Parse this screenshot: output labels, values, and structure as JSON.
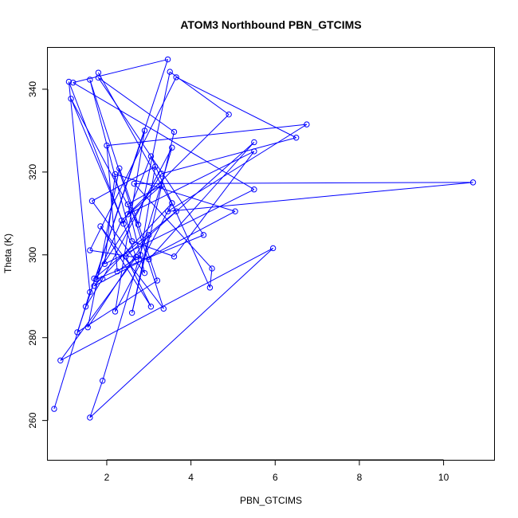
{
  "chart_data": {
    "type": "line",
    "title": "ATOM3 Northbound PBN_GTCIMS",
    "xlabel": "PBN_GTCIMS",
    "ylabel": "Theta (K)",
    "xlim": [
      0.6,
      11.2
    ],
    "ylim": [
      250.5,
      350
    ],
    "x_ticks": [
      2,
      4,
      6,
      8,
      10
    ],
    "y_ticks": [
      260,
      280,
      300,
      320,
      340
    ],
    "grid": false,
    "line_color": "#0000ff",
    "marker": "open-circle",
    "series": [
      {
        "x": [
          0.75,
          1.6,
          1.1,
          2.7,
          0.9,
          5.95,
          1.6,
          1.9,
          3.55,
          1.9,
          1.5,
          3.45,
          1.2,
          5.5,
          1.95,
          2.2,
          5.05,
          1.7,
          3.55,
          2.2,
          2.9,
          1.3,
          3.2,
          2.3,
          1.55,
          3.0,
          2.6,
          3.6,
          1.8,
          4.3,
          1.75,
          2.35,
          3.3,
          2.5,
          2.9,
          1.65,
          3.15,
          2.8,
          2.25,
          2.0,
          6.75,
          3.45,
          10.7,
          2.65,
          4.5,
          4.45,
          3.05,
          2.4,
          1.15,
          2.75,
          3.5,
          4.9,
          2.5,
          5.5,
          3.6,
          2.6,
          1.6,
          3.35,
          1.85,
          3.05,
          2.45,
          5.5,
          3.0,
          1.6,
          3.65,
          6.5,
          3.3,
          1.7,
          3.65,
          1.8
        ],
        "y": [
          262.8,
          291.0,
          341.8,
          299.5,
          274.5,
          301.6,
          260.7,
          269.6,
          325.9,
          294.2,
          287.5,
          347.2,
          341.6,
          315.8,
          297.8,
          319.5,
          310.5,
          292.5,
          312.5,
          286.3,
          330.0,
          281.3,
          293.8,
          320.9,
          282.5,
          304.8,
          286.0,
          329.7,
          342.8,
          304.8,
          294.1,
          308.3,
          316.8,
          312.2,
          295.6,
          313.0,
          321.3,
          300.0,
          296.0,
          326.4,
          331.5,
          310.5,
          317.5,
          317.2,
          296.7,
          292.1,
          323.8,
          307.5,
          337.7,
          307.3,
          344.2,
          333.9,
          309.8,
          325.0,
          299.6,
          303.3,
          342.3,
          287.0,
          306.9,
          287.5,
          299.6,
          327.2,
          298.9,
          301.1,
          342.9,
          328.3,
          319.6,
          294.3,
          310.5,
          344.0
        ]
      }
    ]
  }
}
